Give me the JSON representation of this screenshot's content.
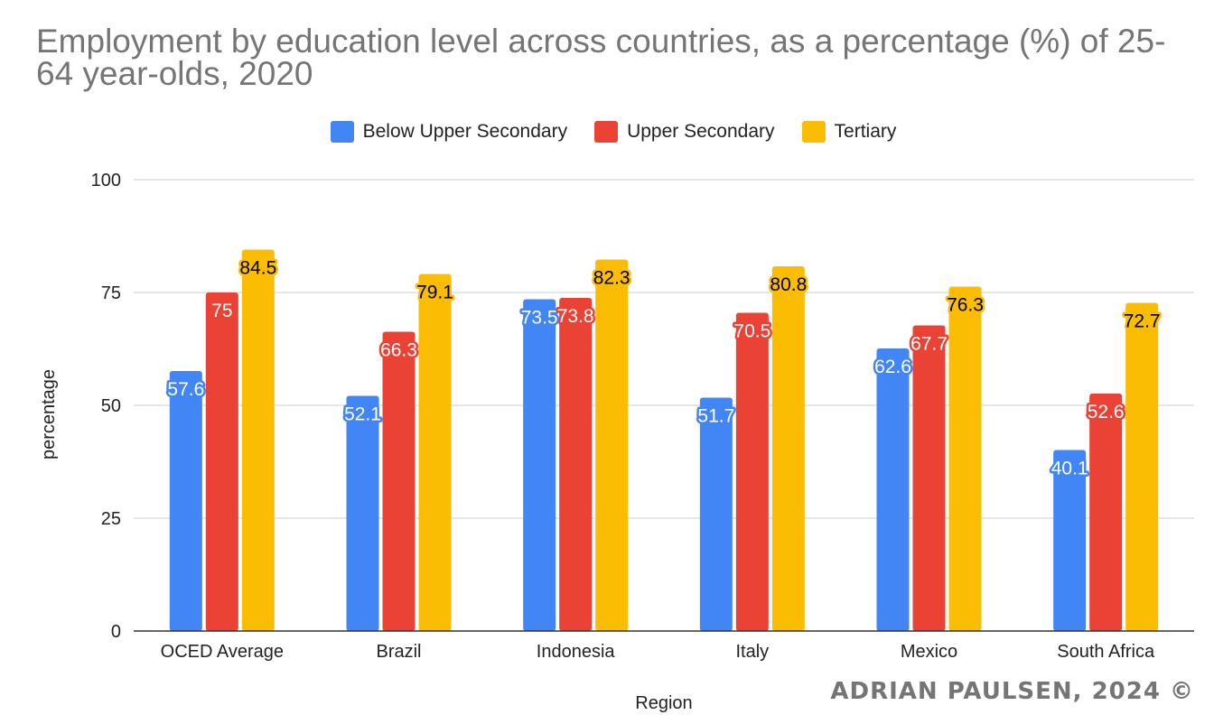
{
  "chart_data": {
    "type": "bar",
    "title": "Employment by education level across countries, as a percentage (%) of 25-64 year-olds, 2020",
    "xlabel": "Region",
    "ylabel": "percentage",
    "ylim": [
      0,
      100
    ],
    "yticks": [
      0,
      25,
      50,
      75,
      100
    ],
    "grid": true,
    "legend_position": "top-center",
    "categories": [
      "OCED Average",
      "Brazil",
      "Indonesia",
      "Italy",
      "Mexico",
      "South Africa"
    ],
    "series": [
      {
        "name": "Below Upper Secondary",
        "color": "#4285F4",
        "label_text_color": "#ffffff",
        "values": [
          57.6,
          52.1,
          73.5,
          51.7,
          62.6,
          40.1
        ]
      },
      {
        "name": "Upper Secondary",
        "color": "#EA4335",
        "label_text_color": "#ffffff",
        "values": [
          75,
          66.3,
          73.8,
          70.5,
          67.7,
          52.6
        ]
      },
      {
        "name": "Tertiary",
        "color": "#FBBC04",
        "label_text_color": "#000000",
        "values": [
          84.5,
          79.1,
          82.3,
          80.8,
          76.3,
          72.7
        ]
      }
    ],
    "data_labels": true
  },
  "footer": {
    "copyright": "ADRIAN PAULSEN, 2024 ©"
  }
}
